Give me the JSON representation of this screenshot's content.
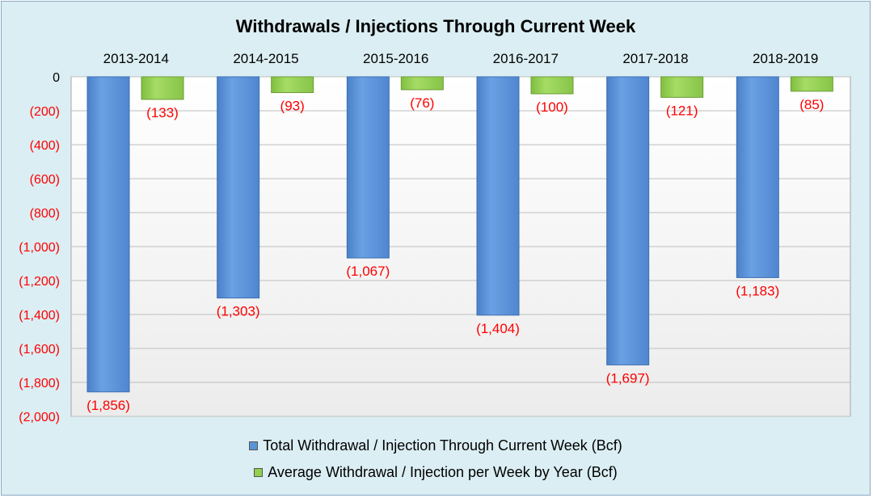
{
  "chart_data": {
    "type": "bar",
    "title": "Withdrawals / Injections Through Current Week",
    "categories": [
      "2013-2014",
      "2014-2015",
      "2015-2016",
      "2016-2017",
      "2017-2018",
      "2018-2019"
    ],
    "series": [
      {
        "name": "Total Withdrawal / Injection Through Current Week (Bcf)",
        "values": [
          -1856,
          -1303,
          -1067,
          -1404,
          -1697,
          -1183
        ],
        "labels": [
          "(1,856)",
          "(1,303)",
          "(1,067)",
          "(1,404)",
          "(1,697)",
          "(1,183)"
        ],
        "color": "#5b93d8"
      },
      {
        "name": "Average Withdrawal / Injection per Week by Year (Bcf)",
        "values": [
          -133,
          -93,
          -76,
          -100,
          -121,
          -85
        ],
        "labels": [
          "(133)",
          "(93)",
          "(76)",
          "(100)",
          "(121)",
          "(85)"
        ],
        "color": "#92d050"
      }
    ],
    "yticks": [
      "0",
      "(200)",
      "(400)",
      "(600)",
      "(800)",
      "(1,000)",
      "(1,200)",
      "(1,400)",
      "(1,600)",
      "(1,800)",
      "(2,000)"
    ],
    "ylim": [
      -2000,
      0
    ],
    "grid": true,
    "legend": "bottom",
    "label_color": "#ff0000",
    "tick_label_color": "#ff0000"
  }
}
